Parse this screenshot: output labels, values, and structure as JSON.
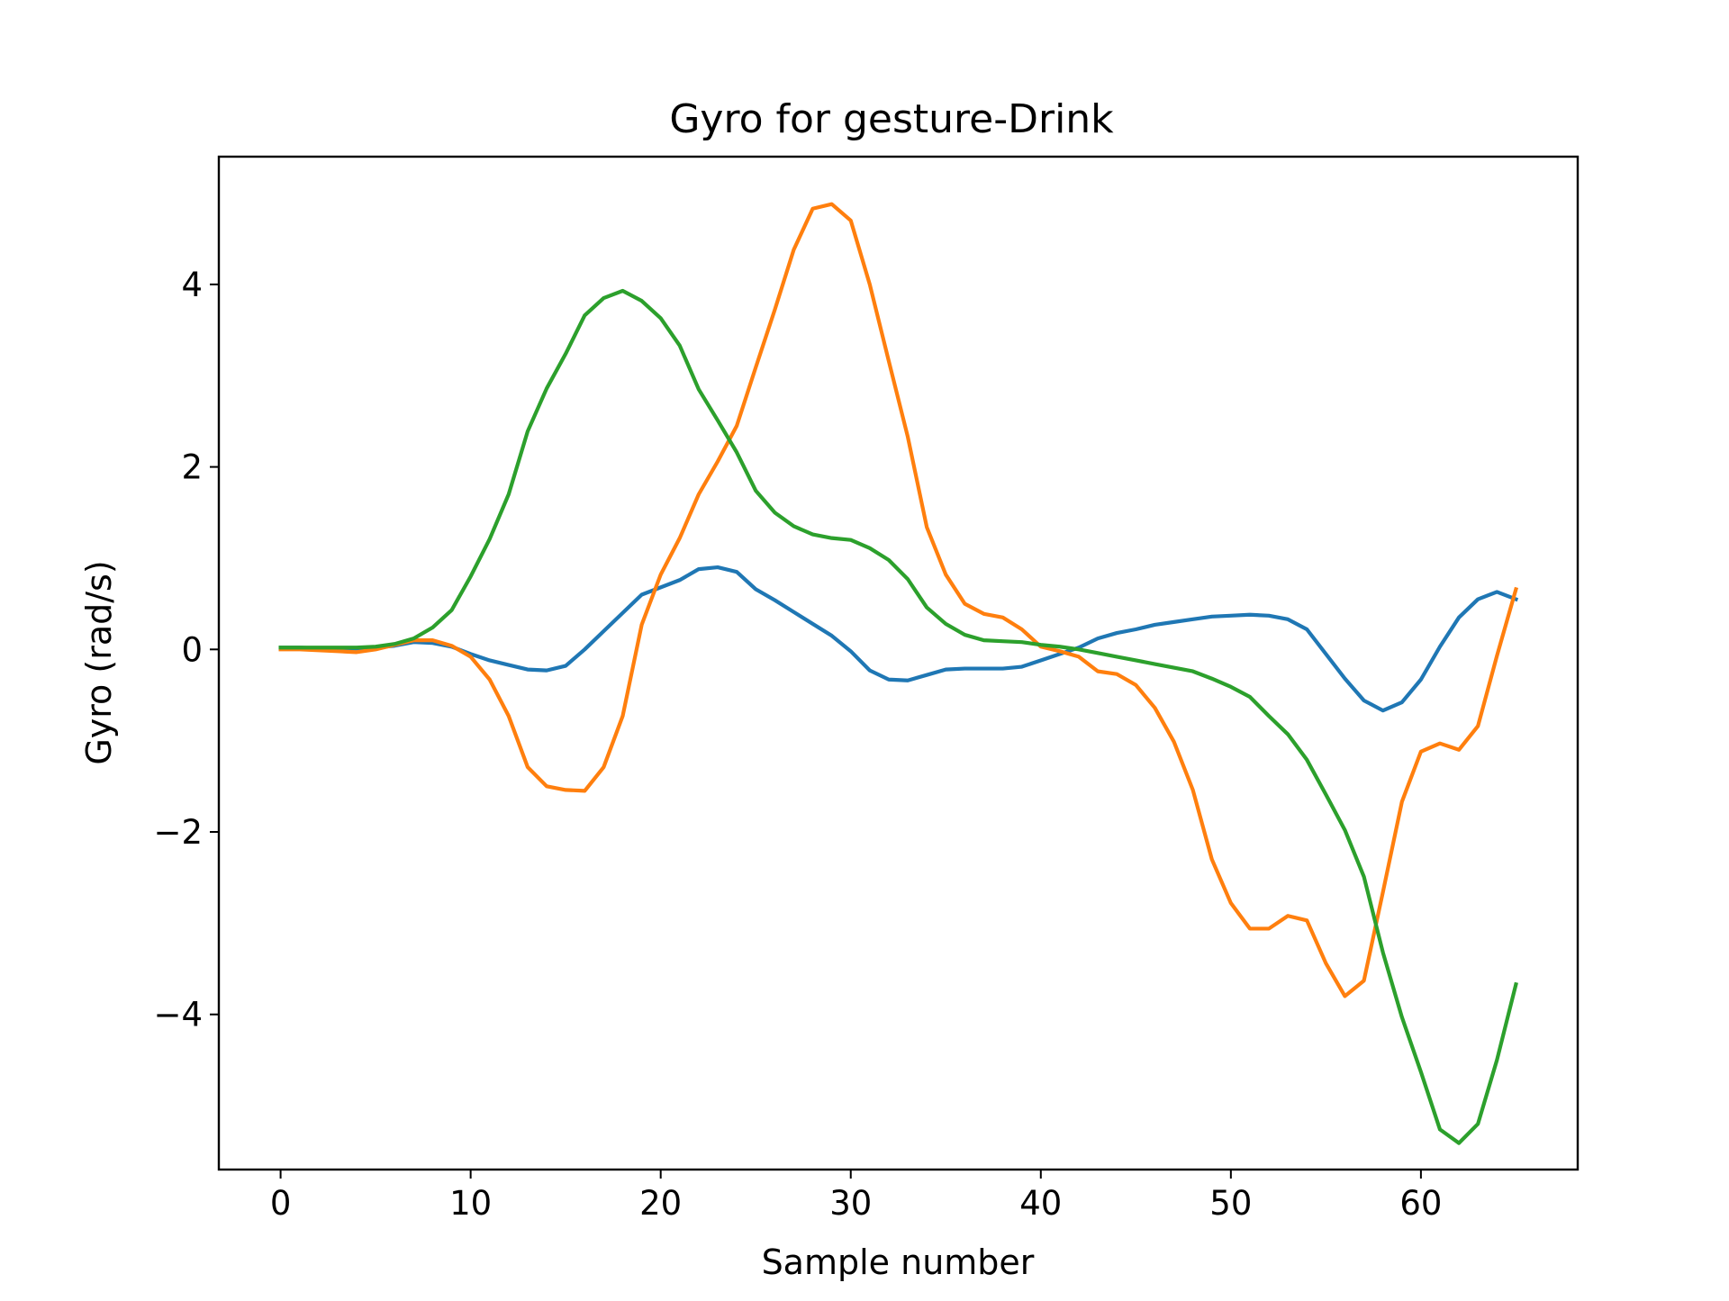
{
  "chart_data": {
    "type": "line",
    "title": "Gyro for gesture-Drink",
    "xlabel": "Sample number",
    "ylabel": "Gyro  (rad/s)",
    "xlim": [
      -3.25,
      68.25
    ],
    "ylim": [
      -5.7,
      5.4
    ],
    "xticks": [
      0,
      10,
      20,
      30,
      40,
      50,
      60
    ],
    "yticks": [
      4,
      2,
      0,
      -2,
      -4
    ],
    "ytick_labels": [
      "4",
      "2",
      "0",
      "−2",
      "−4"
    ],
    "grid": false,
    "legend": "none",
    "x": [
      0,
      1,
      2,
      3,
      4,
      5,
      6,
      7,
      8,
      9,
      10,
      11,
      12,
      13,
      14,
      15,
      16,
      17,
      18,
      19,
      20,
      21,
      22,
      23,
      24,
      25,
      26,
      27,
      28,
      29,
      30,
      31,
      32,
      33,
      34,
      35,
      36,
      37,
      38,
      39,
      40,
      41,
      42,
      43,
      44,
      45,
      46,
      47,
      48,
      49,
      50,
      51,
      52,
      53,
      54,
      55,
      56,
      57,
      58,
      59,
      60,
      61,
      62,
      63,
      64,
      65
    ],
    "series": [
      {
        "color": "#1f77b4",
        "values": [
          0.02,
          0.02,
          0.01,
          0.01,
          0.01,
          0.02,
          0.04,
          0.08,
          0.07,
          0.03,
          -0.05,
          -0.12,
          -0.17,
          -0.22,
          -0.23,
          -0.18,
          0.0,
          0.2,
          0.4,
          0.6,
          0.68,
          0.76,
          0.88,
          0.9,
          0.85,
          0.66,
          0.54,
          0.41,
          0.28,
          0.15,
          -0.02,
          -0.23,
          -0.33,
          -0.34,
          -0.28,
          -0.22,
          -0.21,
          -0.21,
          -0.21,
          -0.19,
          -0.12,
          -0.05,
          0.02,
          0.12,
          0.18,
          0.22,
          0.27,
          0.3,
          0.33,
          0.36,
          0.37,
          0.38,
          0.37,
          0.33,
          0.22,
          -0.05,
          -0.32,
          -0.56,
          -0.67,
          -0.58,
          -0.33,
          0.03,
          0.35,
          0.55,
          0.63,
          0.55
        ]
      },
      {
        "color": "#ff7f0e",
        "values": [
          0.0,
          0.0,
          -0.01,
          -0.02,
          -0.03,
          0.0,
          0.05,
          0.1,
          0.1,
          0.04,
          -0.08,
          -0.33,
          -0.73,
          -1.29,
          -1.5,
          -1.54,
          -1.55,
          -1.29,
          -0.73,
          0.27,
          0.82,
          1.22,
          1.7,
          2.06,
          2.45,
          3.09,
          3.72,
          4.38,
          4.83,
          4.88,
          4.7,
          4.0,
          3.16,
          2.33,
          1.34,
          0.82,
          0.5,
          0.39,
          0.35,
          0.22,
          0.03,
          -0.02,
          -0.08,
          -0.24,
          -0.27,
          -0.39,
          -0.64,
          -1.01,
          -1.54,
          -2.3,
          -2.78,
          -3.06,
          -3.06,
          -2.92,
          -2.97,
          -3.44,
          -3.8,
          -3.63,
          -2.66,
          -1.67,
          -1.12,
          -1.03,
          -1.1,
          -0.84,
          -0.07,
          0.66
        ]
      },
      {
        "color": "#2ca02c",
        "values": [
          0.02,
          0.02,
          0.02,
          0.02,
          0.02,
          0.03,
          0.06,
          0.12,
          0.24,
          0.43,
          0.8,
          1.21,
          1.7,
          2.39,
          2.86,
          3.24,
          3.66,
          3.85,
          3.93,
          3.82,
          3.63,
          3.33,
          2.85,
          2.51,
          2.16,
          1.74,
          1.5,
          1.35,
          1.26,
          1.22,
          1.2,
          1.11,
          0.98,
          0.77,
          0.46,
          0.28,
          0.16,
          0.1,
          0.09,
          0.08,
          0.05,
          0.03,
          0.0,
          -0.04,
          -0.08,
          -0.12,
          -0.16,
          -0.2,
          -0.24,
          -0.32,
          -0.41,
          -0.52,
          -0.73,
          -0.93,
          -1.21,
          -1.59,
          -1.98,
          -2.49,
          -3.32,
          -4.03,
          -4.63,
          -5.26,
          -5.41,
          -5.2,
          -4.5,
          -3.67
        ]
      }
    ]
  }
}
